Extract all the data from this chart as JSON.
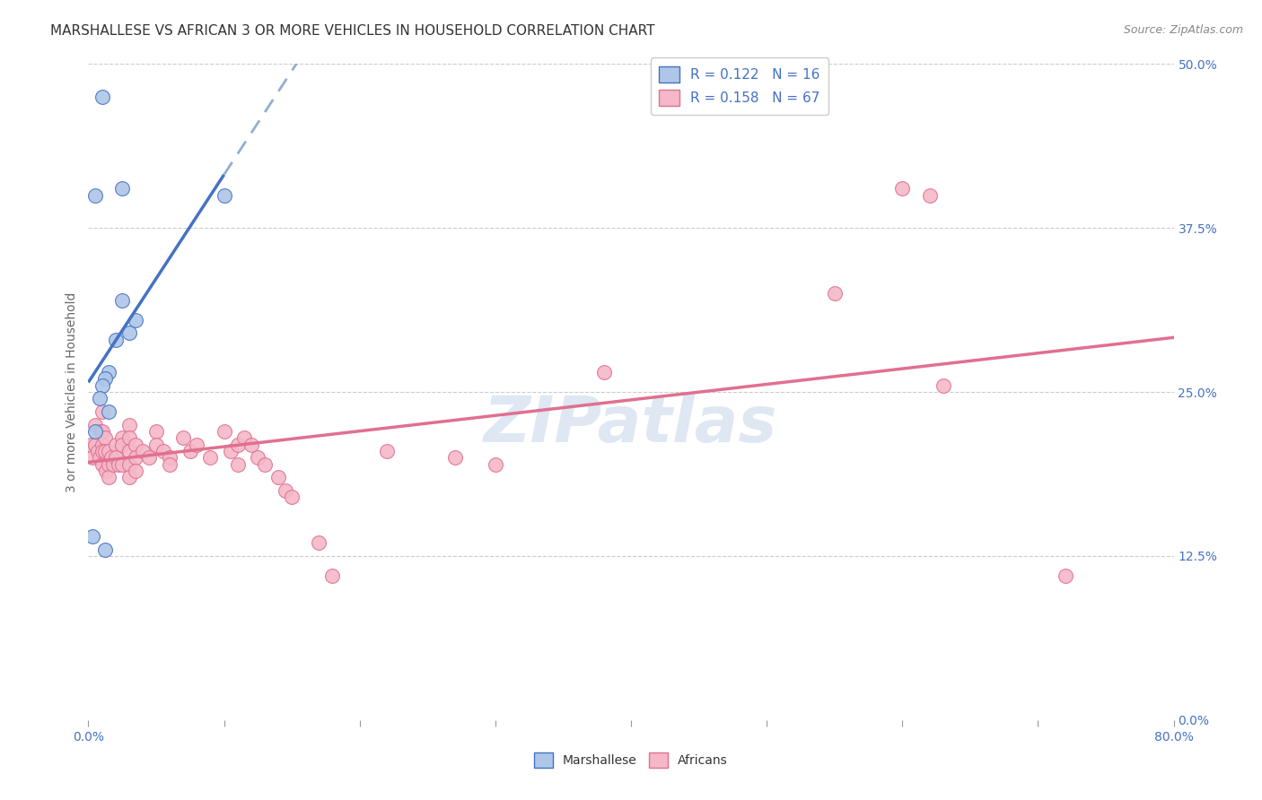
{
  "title": "MARSHALLESE VS AFRICAN 3 OR MORE VEHICLES IN HOUSEHOLD CORRELATION CHART",
  "source": "Source: ZipAtlas.com",
  "ylabel": "3 or more Vehicles in Household",
  "yticks": [
    0.0,
    12.5,
    25.0,
    37.5,
    50.0
  ],
  "xticks": [
    0.0,
    10.0,
    20.0,
    30.0,
    40.0,
    50.0,
    60.0,
    70.0,
    80.0
  ],
  "xmin": 0.0,
  "xmax": 80.0,
  "ymin": 0.0,
  "ymax": 50.0,
  "marshallese_color": "#aec6e8",
  "african_color": "#f4b8c8",
  "marshallese_line_color": "#4472c4",
  "african_line_color": "#e07090",
  "marshallese_R": 0.122,
  "marshallese_N": 16,
  "african_R": 0.158,
  "african_N": 67,
  "marshallese_points": [
    [
      1.0,
      47.5
    ],
    [
      0.5,
      40.0
    ],
    [
      2.5,
      40.5
    ],
    [
      10.0,
      40.0
    ],
    [
      2.5,
      32.0
    ],
    [
      3.5,
      30.5
    ],
    [
      3.0,
      29.5
    ],
    [
      2.0,
      29.0
    ],
    [
      1.5,
      26.5
    ],
    [
      1.2,
      26.0
    ],
    [
      1.0,
      25.5
    ],
    [
      0.8,
      24.5
    ],
    [
      1.5,
      23.5
    ],
    [
      0.5,
      22.0
    ],
    [
      0.3,
      14.0
    ],
    [
      1.2,
      13.0
    ]
  ],
  "african_points": [
    [
      0.2,
      21.0
    ],
    [
      0.3,
      20.0
    ],
    [
      0.5,
      22.5
    ],
    [
      0.5,
      21.0
    ],
    [
      0.7,
      20.5
    ],
    [
      0.8,
      20.0
    ],
    [
      0.9,
      22.0
    ],
    [
      1.0,
      23.5
    ],
    [
      1.0,
      22.0
    ],
    [
      1.0,
      21.0
    ],
    [
      1.0,
      20.5
    ],
    [
      1.0,
      19.5
    ],
    [
      1.2,
      21.5
    ],
    [
      1.2,
      20.5
    ],
    [
      1.3,
      19.0
    ],
    [
      1.5,
      20.5
    ],
    [
      1.5,
      19.5
    ],
    [
      1.5,
      18.5
    ],
    [
      1.7,
      20.0
    ],
    [
      1.8,
      19.5
    ],
    [
      2.0,
      21.0
    ],
    [
      2.0,
      20.0
    ],
    [
      2.2,
      19.5
    ],
    [
      2.5,
      21.5
    ],
    [
      2.5,
      21.0
    ],
    [
      2.5,
      19.5
    ],
    [
      3.0,
      22.5
    ],
    [
      3.0,
      21.5
    ],
    [
      3.0,
      20.5
    ],
    [
      3.0,
      19.5
    ],
    [
      3.0,
      18.5
    ],
    [
      3.5,
      21.0
    ],
    [
      3.5,
      20.0
    ],
    [
      3.5,
      19.0
    ],
    [
      4.0,
      20.5
    ],
    [
      4.5,
      20.0
    ],
    [
      5.0,
      22.0
    ],
    [
      5.0,
      21.0
    ],
    [
      5.5,
      20.5
    ],
    [
      6.0,
      20.0
    ],
    [
      6.0,
      19.5
    ],
    [
      7.0,
      21.5
    ],
    [
      7.5,
      20.5
    ],
    [
      8.0,
      21.0
    ],
    [
      9.0,
      20.0
    ],
    [
      10.0,
      22.0
    ],
    [
      10.5,
      20.5
    ],
    [
      11.0,
      21.0
    ],
    [
      11.0,
      19.5
    ],
    [
      11.5,
      21.5
    ],
    [
      12.0,
      21.0
    ],
    [
      12.5,
      20.0
    ],
    [
      13.0,
      19.5
    ],
    [
      14.0,
      18.5
    ],
    [
      14.5,
      17.5
    ],
    [
      15.0,
      17.0
    ],
    [
      17.0,
      13.5
    ],
    [
      18.0,
      11.0
    ],
    [
      22.0,
      20.5
    ],
    [
      27.0,
      20.0
    ],
    [
      30.0,
      19.5
    ],
    [
      38.0,
      26.5
    ],
    [
      55.0,
      32.5
    ],
    [
      60.0,
      40.5
    ],
    [
      62.0,
      40.0
    ],
    [
      63.0,
      25.5
    ],
    [
      72.0,
      11.0
    ]
  ],
  "background_color": "#ffffff",
  "grid_color": "#cccccc",
  "title_fontsize": 11,
  "label_fontsize": 10,
  "tick_fontsize": 10,
  "legend_fontsize": 11,
  "dashed_line_color": "#90afd0",
  "marsh_solid_end_x": 10.0,
  "watermark": "ZIPatlas"
}
